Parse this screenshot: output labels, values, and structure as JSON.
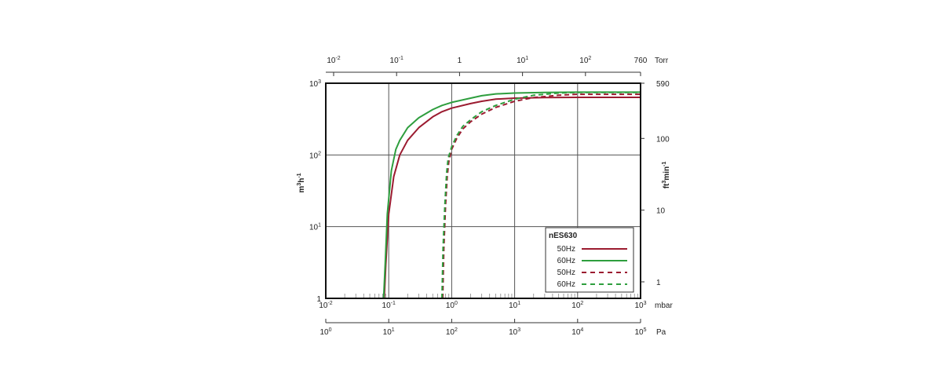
{
  "chart_data": {
    "type": "line",
    "title": "",
    "x": {
      "scale": "log",
      "range": [
        0.01,
        1000
      ],
      "unit_label": "mbar",
      "ticks": [
        {
          "value": 0.01,
          "base": "10",
          "exp": "-2"
        },
        {
          "value": 0.1,
          "base": "10",
          "exp": "-1"
        },
        {
          "value": 1,
          "base": "10",
          "exp": "0"
        },
        {
          "value": 10,
          "base": "10",
          "exp": "1"
        },
        {
          "value": 100,
          "base": "10",
          "exp": "2"
        },
        {
          "value": 1000,
          "base": "10",
          "exp": "3"
        }
      ]
    },
    "x_top": {
      "unit_label": "Torr",
      "ticks": [
        {
          "mbar": 0.01333,
          "base": "10",
          "exp": "-2"
        },
        {
          "mbar": 0.1333,
          "base": "10",
          "exp": "-1"
        },
        {
          "mbar": 1.333,
          "base": "1",
          "exp": ""
        },
        {
          "mbar": 13.33,
          "base": "10",
          "exp": "1"
        },
        {
          "mbar": 133.3,
          "base": "10",
          "exp": "2"
        },
        {
          "mbar": 1013,
          "base": "760",
          "exp": ""
        }
      ]
    },
    "x_bottom2": {
      "unit_label": "Pa",
      "ticks": [
        {
          "mbar": 0.01,
          "base": "10",
          "exp": "0"
        },
        {
          "mbar": 0.1,
          "base": "10",
          "exp": "1"
        },
        {
          "mbar": 1,
          "base": "10",
          "exp": "2"
        },
        {
          "mbar": 10,
          "base": "10",
          "exp": "3"
        },
        {
          "mbar": 100,
          "base": "10",
          "exp": "4"
        },
        {
          "mbar": 1000,
          "base": "10",
          "exp": "5"
        }
      ]
    },
    "y": {
      "scale": "log",
      "range": [
        1,
        1000
      ],
      "label_base": "m",
      "label_exp1": "3",
      "label_mid": "h",
      "label_exp2": "-1",
      "ticks": [
        {
          "value": 1,
          "base": "1",
          "exp": ""
        },
        {
          "value": 10,
          "base": "10",
          "exp": "1"
        },
        {
          "value": 100,
          "base": "10",
          "exp": "2"
        },
        {
          "value": 1000,
          "base": "10",
          "exp": "3"
        }
      ]
    },
    "y_right": {
      "label_base": "ft",
      "label_exp1": "3",
      "label_mid": "min",
      "label_exp2": "-1",
      "ticks": [
        {
          "m3h": 1.699,
          "label": "1"
        },
        {
          "m3h": 16.99,
          "label": "10"
        },
        {
          "m3h": 169.9,
          "label": "100"
        },
        {
          "m3h": 1002,
          "label": "590"
        }
      ]
    },
    "grid": true,
    "legend": {
      "placement": "bottom-right",
      "title": "nES630",
      "entries": [
        "50Hz",
        "60Hz",
        "50Hz",
        "60Hz"
      ]
    },
    "series": [
      {
        "name": "50Hz",
        "color": "#9b1b30",
        "dash": "solid",
        "points": [
          [
            0.085,
            1
          ],
          [
            0.09,
            3
          ],
          [
            0.1,
            15
          ],
          [
            0.12,
            50
          ],
          [
            0.15,
            100
          ],
          [
            0.2,
            160
          ],
          [
            0.3,
            240
          ],
          [
            0.5,
            340
          ],
          [
            0.7,
            400
          ],
          [
            1,
            450
          ],
          [
            2,
            520
          ],
          [
            3,
            560
          ],
          [
            5,
            600
          ],
          [
            10,
            620
          ],
          [
            30,
            630
          ],
          [
            100,
            635
          ],
          [
            1000,
            635
          ]
        ]
      },
      {
        "name": "60Hz",
        "color": "#2e9e3e",
        "dash": "solid",
        "points": [
          [
            0.083,
            1
          ],
          [
            0.088,
            3
          ],
          [
            0.095,
            15
          ],
          [
            0.11,
            60
          ],
          [
            0.13,
            120
          ],
          [
            0.15,
            160
          ],
          [
            0.2,
            240
          ],
          [
            0.3,
            330
          ],
          [
            0.5,
            430
          ],
          [
            0.7,
            490
          ],
          [
            1,
            540
          ],
          [
            2,
            620
          ],
          [
            3,
            670
          ],
          [
            5,
            710
          ],
          [
            10,
            730
          ],
          [
            30,
            745
          ],
          [
            100,
            750
          ],
          [
            1000,
            750
          ]
        ]
      },
      {
        "name": "50Hz",
        "color": "#9b1b30",
        "dash": "dashed",
        "points": [
          [
            0.72,
            1
          ],
          [
            0.75,
            5
          ],
          [
            0.8,
            20
          ],
          [
            0.85,
            50
          ],
          [
            0.9,
            80
          ],
          [
            1,
            120
          ],
          [
            1.2,
            170
          ],
          [
            1.5,
            230
          ],
          [
            2,
            290
          ],
          [
            3,
            370
          ],
          [
            5,
            460
          ],
          [
            10,
            560
          ],
          [
            20,
            630
          ],
          [
            50,
            680
          ],
          [
            100,
            700
          ],
          [
            1000,
            700
          ]
        ]
      },
      {
        "name": "60Hz",
        "color": "#2e9e3e",
        "dash": "dashed",
        "points": [
          [
            0.7,
            1
          ],
          [
            0.73,
            5
          ],
          [
            0.78,
            20
          ],
          [
            0.83,
            55
          ],
          [
            0.88,
            90
          ],
          [
            1,
            130
          ],
          [
            1.2,
            185
          ],
          [
            1.5,
            250
          ],
          [
            2,
            310
          ],
          [
            3,
            400
          ],
          [
            5,
            490
          ],
          [
            10,
            600
          ],
          [
            20,
            680
          ],
          [
            50,
            730
          ],
          [
            100,
            745
          ],
          [
            1000,
            745
          ]
        ]
      }
    ]
  }
}
